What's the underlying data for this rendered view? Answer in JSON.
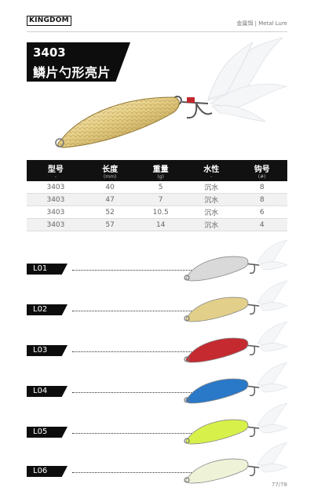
{
  "header": {
    "brand": "KINGDOM",
    "category": "金属饵 | Metal Lure"
  },
  "title": {
    "model": "3403",
    "name": "鳞片勺形亮片"
  },
  "spec_table": {
    "headers": [
      {
        "label": "型号",
        "unit": "-"
      },
      {
        "label": "长度",
        "unit": "(mm)"
      },
      {
        "label": "重量",
        "unit": "(g)"
      },
      {
        "label": "水性",
        "unit": "-"
      },
      {
        "label": "钩号",
        "unit": "(#)"
      }
    ],
    "rows": [
      [
        "3403",
        "40",
        "5",
        "沉水",
        "8"
      ],
      [
        "3403",
        "47",
        "7",
        "沉水",
        "8"
      ],
      [
        "3403",
        "52",
        "10.5",
        "沉水",
        "6"
      ],
      [
        "3403",
        "57",
        "14",
        "沉水",
        "4"
      ]
    ]
  },
  "variants": [
    {
      "code": "L01",
      "body_color": "#d9d9d9",
      "accent": "#9a9a9a"
    },
    {
      "code": "L02",
      "body_color": "#e2cf8a",
      "accent": "#b59a45"
    },
    {
      "code": "L03",
      "body_color": "#c42a2f",
      "accent": "#e8e8e8"
    },
    {
      "code": "L04",
      "body_color": "#2a78c8",
      "accent": "#e8e8e8"
    },
    {
      "code": "L05",
      "body_color": "#d8f04a",
      "accent": "#e8e8e8"
    },
    {
      "code": "L06",
      "body_color": "#eef3d8",
      "accent": "#e0443f"
    }
  ],
  "page": {
    "number": "77/78"
  }
}
